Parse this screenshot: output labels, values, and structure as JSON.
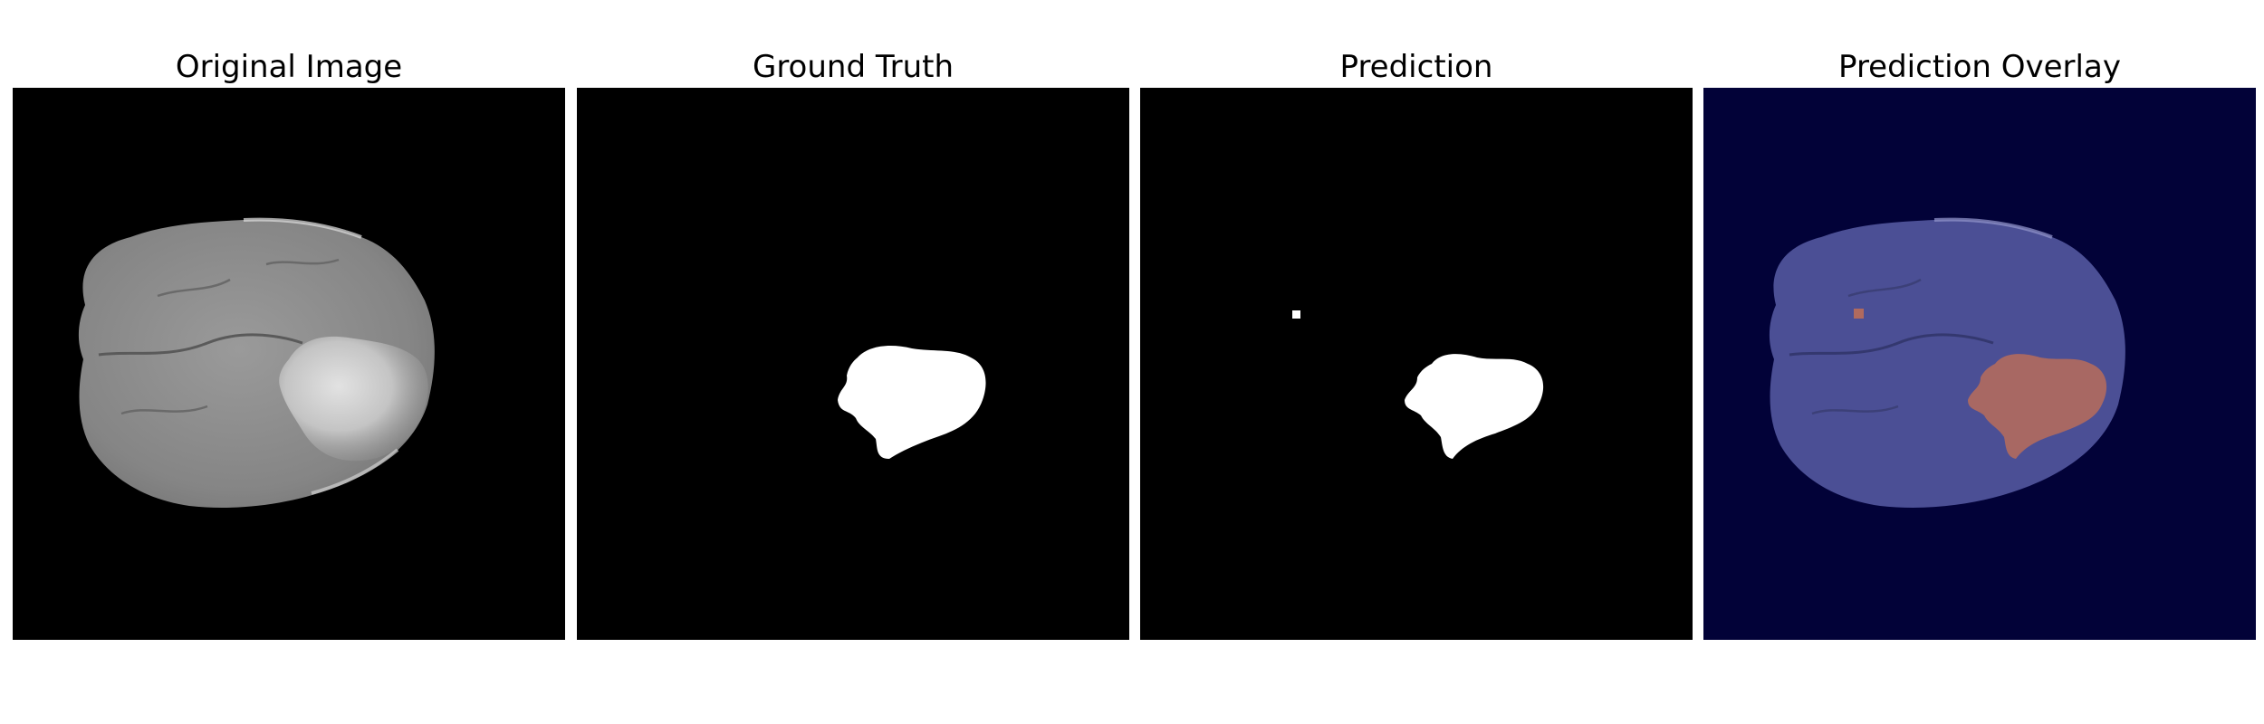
{
  "panels": [
    {
      "title": "Original Image"
    },
    {
      "title": "Ground Truth"
    },
    {
      "title": "Prediction"
    },
    {
      "title": "Prediction Overlay"
    }
  ],
  "colors": {
    "background": "#000000",
    "overlay_background": "#020238",
    "brain_gray": "#8a8a8a",
    "mask_white": "#ffffff",
    "overlay_brain": "#4b4f95",
    "overlay_tumor": "#b06a5e"
  }
}
